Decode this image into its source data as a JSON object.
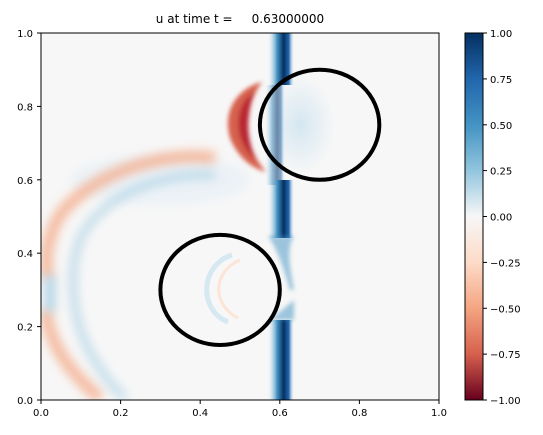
{
  "chart_data": {
    "type": "heatmap",
    "title": "u at time t =     0.63000000",
    "xlabel": "",
    "ylabel": "",
    "xlim": [
      0,
      1
    ],
    "ylim": [
      0,
      1
    ],
    "x_ticks": [
      "0.0",
      "0.2",
      "0.4",
      "0.6",
      "0.8",
      "1.0"
    ],
    "y_ticks": [
      "0.0",
      "0.2",
      "0.4",
      "0.6",
      "0.8",
      "1.0"
    ],
    "colorbar": {
      "colormap": "RdBu",
      "range": [
        -1,
        1
      ],
      "ticks": [
        "1.00",
        "0.75",
        "0.50",
        "0.25",
        "0.00",
        "−0.25",
        "−0.50",
        "−0.75",
        "−1.00"
      ],
      "low_color": "#67001f",
      "mid_color": "#f7f7f7",
      "high_color": "#053061"
    },
    "circles": [
      {
        "cx": 0.7,
        "cy": 0.75,
        "r": 0.15
      },
      {
        "cx": 0.45,
        "cy": 0.3,
        "r": 0.15
      }
    ],
    "features": [
      {
        "kind": "vertical-band",
        "x": 0.605,
        "value": 0.95,
        "description": "strong positive front"
      },
      {
        "kind": "crescent",
        "x": 0.52,
        "y": 0.75,
        "value": -0.6
      },
      {
        "kind": "arc",
        "cx": 0.45,
        "cy": 0.3,
        "value": -0.25
      }
    ]
  }
}
